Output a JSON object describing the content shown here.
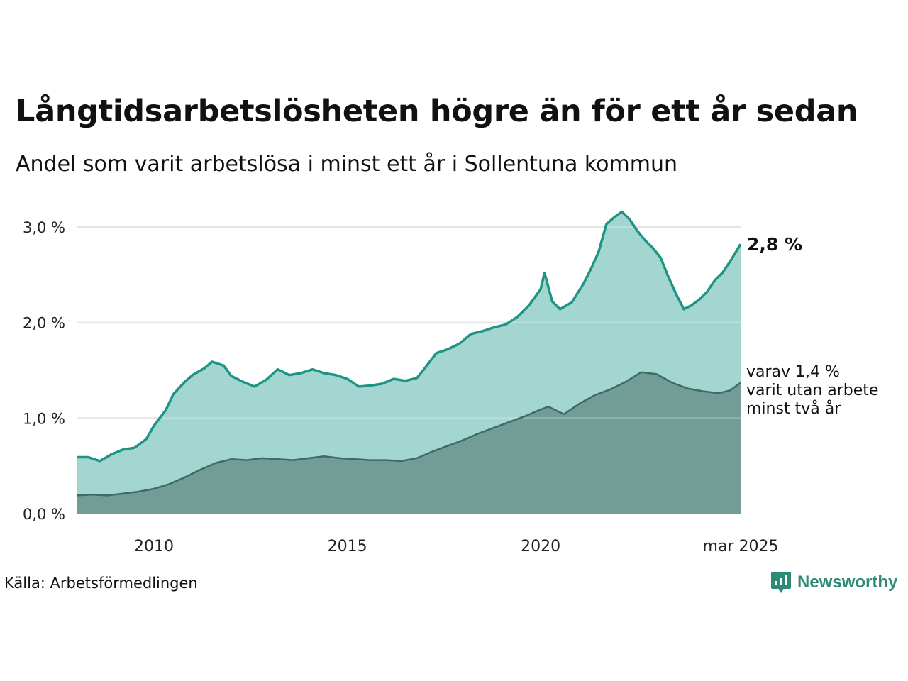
{
  "title": "Långtidsarbetslösheten högre än för ett år sedan",
  "subtitle": "Andel som varit arbetslösa i minst ett år i Sollentuna kommun",
  "source": "Källa: Arbetsförmedlingen",
  "brand": "Newsworthy",
  "colors": {
    "total_line": "#1e9584",
    "total_fill": "#a3d6d0",
    "long_line": "#3e6b63",
    "long_fill": "#729d96",
    "grid": "#dddddd",
    "brand": "#2e8a78"
  },
  "chart_data": {
    "type": "area",
    "ylim": [
      0,
      3.0
    ],
    "y_ticks": [
      {
        "value": 0,
        "label": "0,0 %"
      },
      {
        "value": 1,
        "label": "1,0 %"
      },
      {
        "value": 2,
        "label": "2,0 %"
      },
      {
        "value": 3,
        "label": "3,0 %"
      }
    ],
    "x_ticks": [
      {
        "value": 2010,
        "label": "2010"
      },
      {
        "value": 2015,
        "label": "2015"
      },
      {
        "value": 2020,
        "label": "2020"
      },
      {
        "value": 2025.17,
        "label": "mar 2025"
      }
    ],
    "xlim": [
      2008.0,
      2025.17
    ],
    "series": [
      {
        "key": "total",
        "end_label": "2,8 %",
        "points": [
          [
            2008.0,
            0.59
          ],
          [
            2008.3,
            0.59
          ],
          [
            2008.6,
            0.55
          ],
          [
            2008.9,
            0.62
          ],
          [
            2009.2,
            0.67
          ],
          [
            2009.5,
            0.69
          ],
          [
            2009.8,
            0.78
          ],
          [
            2010.0,
            0.92
          ],
          [
            2010.3,
            1.08
          ],
          [
            2010.5,
            1.25
          ],
          [
            2010.8,
            1.38
          ],
          [
            2011.0,
            1.45
          ],
          [
            2011.3,
            1.52
          ],
          [
            2011.5,
            1.59
          ],
          [
            2011.8,
            1.55
          ],
          [
            2012.0,
            1.44
          ],
          [
            2012.3,
            1.38
          ],
          [
            2012.6,
            1.33
          ],
          [
            2012.9,
            1.4
          ],
          [
            2013.2,
            1.51
          ],
          [
            2013.5,
            1.45
          ],
          [
            2013.8,
            1.47
          ],
          [
            2014.1,
            1.51
          ],
          [
            2014.4,
            1.47
          ],
          [
            2014.7,
            1.45
          ],
          [
            2015.0,
            1.41
          ],
          [
            2015.3,
            1.33
          ],
          [
            2015.6,
            1.34
          ],
          [
            2015.9,
            1.36
          ],
          [
            2016.2,
            1.41
          ],
          [
            2016.5,
            1.39
          ],
          [
            2016.8,
            1.42
          ],
          [
            2017.0,
            1.52
          ],
          [
            2017.3,
            1.68
          ],
          [
            2017.6,
            1.72
          ],
          [
            2017.9,
            1.78
          ],
          [
            2018.2,
            1.88
          ],
          [
            2018.5,
            1.91
          ],
          [
            2018.8,
            1.95
          ],
          [
            2019.1,
            1.98
          ],
          [
            2019.4,
            2.06
          ],
          [
            2019.7,
            2.18
          ],
          [
            2020.0,
            2.35
          ],
          [
            2020.1,
            2.52
          ],
          [
            2020.3,
            2.22
          ],
          [
            2020.5,
            2.14
          ],
          [
            2020.8,
            2.21
          ],
          [
            2021.1,
            2.4
          ],
          [
            2021.3,
            2.56
          ],
          [
            2021.5,
            2.74
          ],
          [
            2021.7,
            3.03
          ],
          [
            2021.9,
            3.1
          ],
          [
            2022.1,
            3.16
          ],
          [
            2022.3,
            3.08
          ],
          [
            2022.5,
            2.96
          ],
          [
            2022.7,
            2.86
          ],
          [
            2022.9,
            2.78
          ],
          [
            2023.1,
            2.68
          ],
          [
            2023.3,
            2.48
          ],
          [
            2023.5,
            2.3
          ],
          [
            2023.7,
            2.14
          ],
          [
            2023.9,
            2.18
          ],
          [
            2024.1,
            2.24
          ],
          [
            2024.3,
            2.32
          ],
          [
            2024.5,
            2.44
          ],
          [
            2024.7,
            2.52
          ],
          [
            2024.9,
            2.64
          ],
          [
            2025.17,
            2.82
          ]
        ]
      },
      {
        "key": "long",
        "end_label": "varav 1,4 % varit utan arbete minst två år",
        "end_label_lines": [
          "varav 1,4 %",
          "varit utan arbete",
          "minst två år"
        ],
        "points": [
          [
            2008.0,
            0.19
          ],
          [
            2008.4,
            0.2
          ],
          [
            2008.8,
            0.19
          ],
          [
            2009.2,
            0.21
          ],
          [
            2009.6,
            0.23
          ],
          [
            2010.0,
            0.26
          ],
          [
            2010.4,
            0.31
          ],
          [
            2010.8,
            0.38
          ],
          [
            2011.2,
            0.46
          ],
          [
            2011.6,
            0.53
          ],
          [
            2012.0,
            0.57
          ],
          [
            2012.4,
            0.56
          ],
          [
            2012.8,
            0.58
          ],
          [
            2013.2,
            0.57
          ],
          [
            2013.6,
            0.56
          ],
          [
            2014.0,
            0.58
          ],
          [
            2014.4,
            0.6
          ],
          [
            2014.8,
            0.58
          ],
          [
            2015.2,
            0.57
          ],
          [
            2015.6,
            0.56
          ],
          [
            2016.0,
            0.56
          ],
          [
            2016.4,
            0.55
          ],
          [
            2016.8,
            0.58
          ],
          [
            2017.2,
            0.65
          ],
          [
            2017.6,
            0.71
          ],
          [
            2018.0,
            0.77
          ],
          [
            2018.4,
            0.84
          ],
          [
            2018.8,
            0.9
          ],
          [
            2019.2,
            0.96
          ],
          [
            2019.6,
            1.02
          ],
          [
            2020.0,
            1.09
          ],
          [
            2020.2,
            1.12
          ],
          [
            2020.6,
            1.04
          ],
          [
            2021.0,
            1.15
          ],
          [
            2021.4,
            1.24
          ],
          [
            2021.8,
            1.3
          ],
          [
            2022.2,
            1.38
          ],
          [
            2022.6,
            1.48
          ],
          [
            2023.0,
            1.46
          ],
          [
            2023.4,
            1.37
          ],
          [
            2023.8,
            1.31
          ],
          [
            2024.2,
            1.28
          ],
          [
            2024.6,
            1.26
          ],
          [
            2024.9,
            1.29
          ],
          [
            2025.17,
            1.37
          ]
        ]
      }
    ]
  }
}
